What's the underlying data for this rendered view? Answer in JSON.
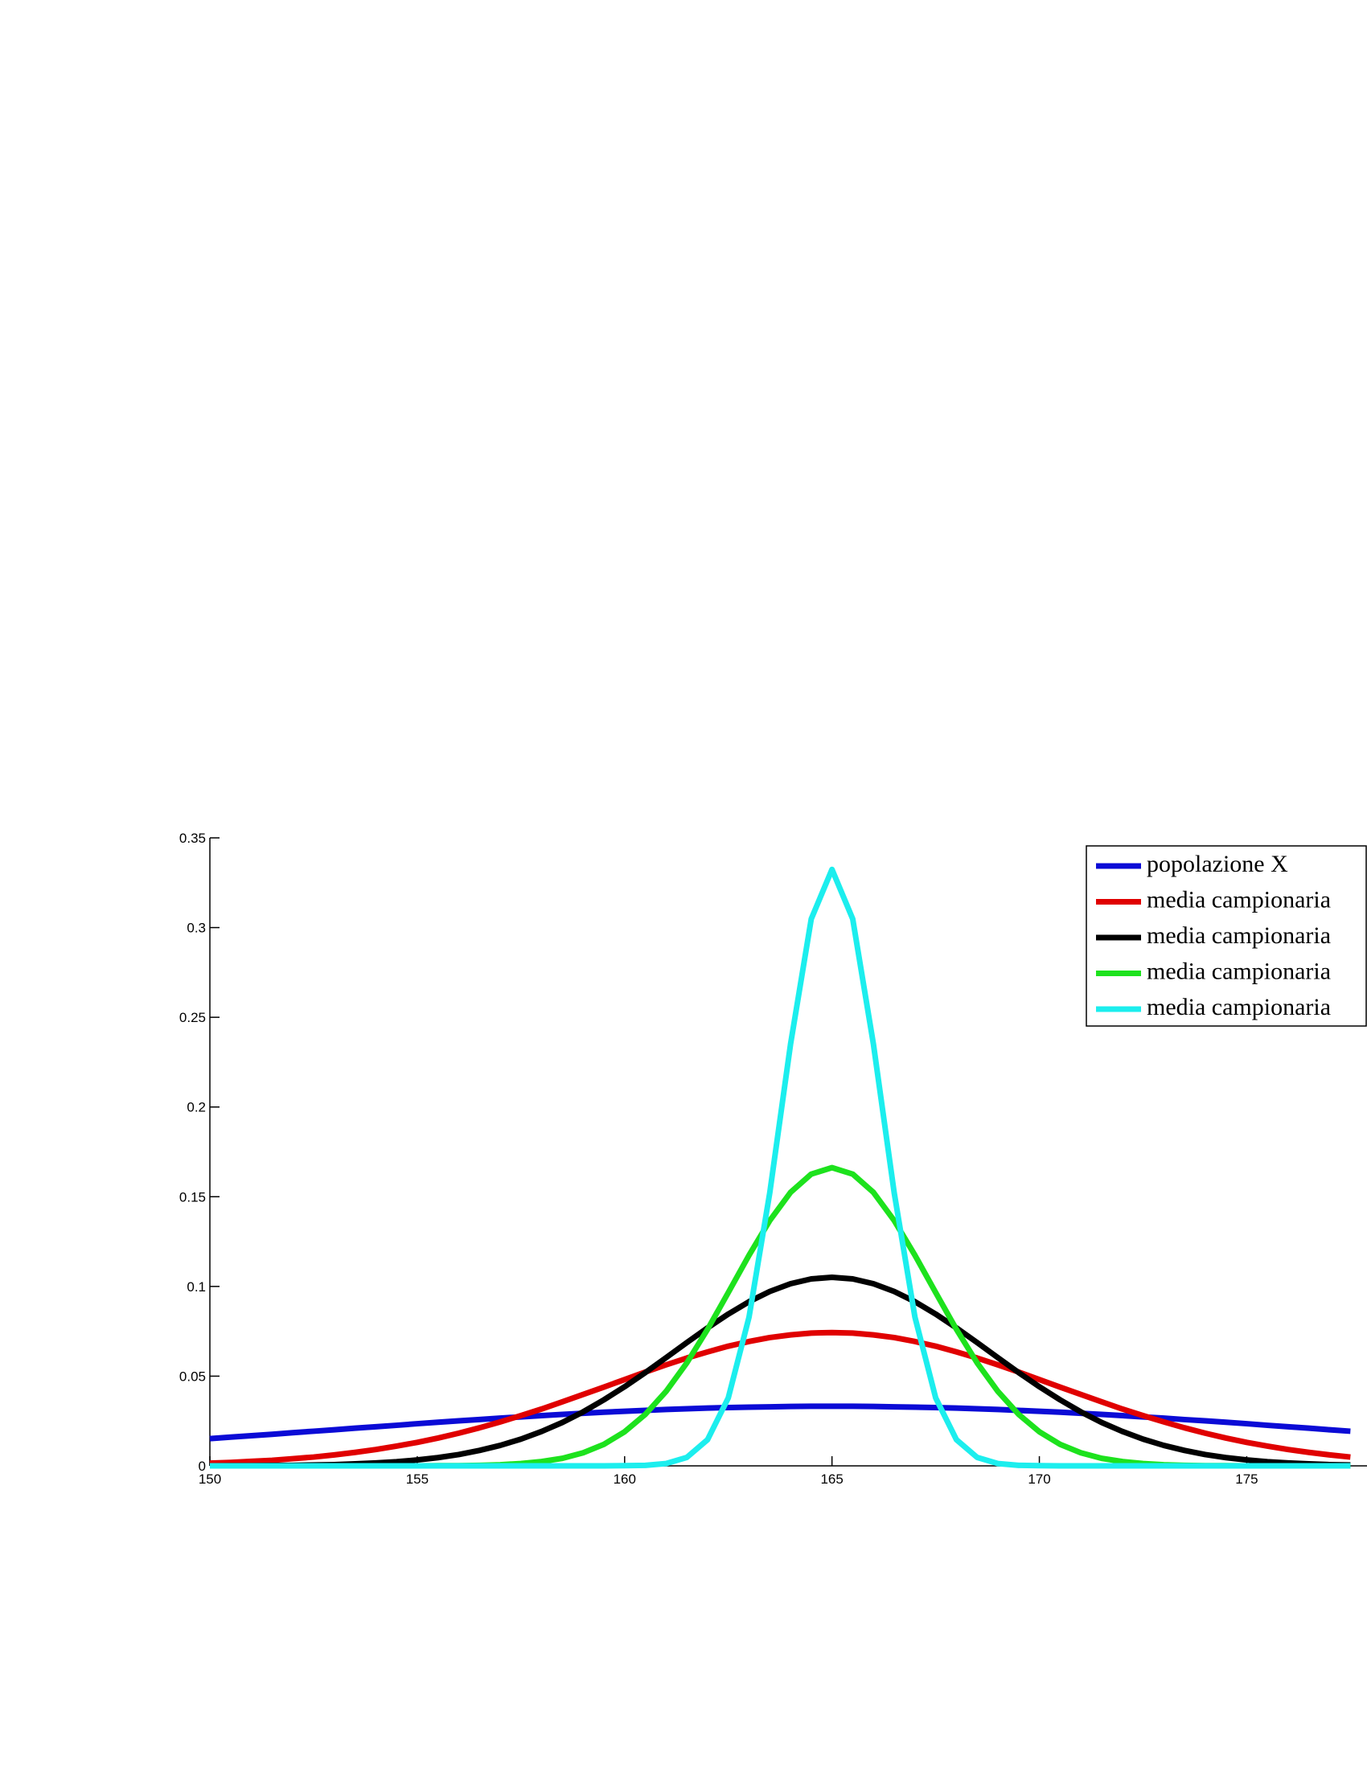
{
  "chart_data": {
    "type": "line",
    "x": [
      150,
      150.5,
      151,
      151.5,
      152,
      152.5,
      153,
      153.5,
      154,
      154.5,
      155,
      155.5,
      156,
      156.5,
      157,
      157.5,
      158,
      158.5,
      159,
      159.5,
      160,
      160.5,
      161,
      161.5,
      162,
      162.5,
      163,
      163.5,
      164,
      164.5,
      165,
      165.5,
      166,
      166.5,
      167,
      167.5,
      168,
      168.5,
      169,
      169.5,
      170,
      170.5,
      171,
      171.5,
      172,
      172.5,
      173,
      173.5,
      174,
      174.5,
      175,
      175.5,
      176,
      176.5,
      177,
      177.5
    ],
    "series": [
      {
        "name": "popolazione X",
        "color": "#0b0bd6",
        "values": [
          0.0152,
          0.016,
          0.0168,
          0.0176,
          0.0185,
          0.0193,
          0.0201,
          0.021,
          0.0218,
          0.0226,
          0.0235,
          0.0243,
          0.0251,
          0.0258,
          0.0266,
          0.0273,
          0.028,
          0.0287,
          0.0293,
          0.0299,
          0.0304,
          0.0309,
          0.0314,
          0.0318,
          0.0322,
          0.0325,
          0.0327,
          0.0329,
          0.0331,
          0.0332,
          0.0332,
          0.0332,
          0.0331,
          0.0329,
          0.0327,
          0.0325,
          0.0322,
          0.0318,
          0.0314,
          0.0309,
          0.0304,
          0.0299,
          0.0293,
          0.0287,
          0.028,
          0.0273,
          0.0266,
          0.0258,
          0.0251,
          0.0243,
          0.0235,
          0.0226,
          0.0218,
          0.021,
          0.0201,
          0.0193
        ]
      },
      {
        "name": "media campionaria",
        "color": "#e00000",
        "values": [
          0.0015,
          0.0019,
          0.0025,
          0.0031,
          0.004,
          0.0049,
          0.0061,
          0.0075,
          0.0091,
          0.011,
          0.0131,
          0.0155,
          0.0182,
          0.0212,
          0.0245,
          0.028,
          0.0317,
          0.0357,
          0.0398,
          0.0439,
          0.0481,
          0.0523,
          0.0563,
          0.0601,
          0.0635,
          0.0667,
          0.0693,
          0.0715,
          0.073,
          0.074,
          0.0743,
          0.074,
          0.073,
          0.0715,
          0.0693,
          0.0667,
          0.0635,
          0.0601,
          0.0563,
          0.0523,
          0.0481,
          0.0439,
          0.0398,
          0.0357,
          0.0317,
          0.028,
          0.0245,
          0.0212,
          0.0182,
          0.0155,
          0.0131,
          0.011,
          0.0091,
          0.0075,
          0.0061,
          0.0049
        ]
      },
      {
        "name": "media campionaria",
        "color": "#000000",
        "values": [
          0,
          0.0001,
          0.0001,
          0.0002,
          0.0003,
          0.0005,
          0.0007,
          0.0011,
          0.0016,
          0.0023,
          0.0033,
          0.0046,
          0.0063,
          0.0086,
          0.0114,
          0.0149,
          0.0192,
          0.0242,
          0.0301,
          0.0368,
          0.0441,
          0.052,
          0.0603,
          0.0687,
          0.0769,
          0.0846,
          0.0915,
          0.0972,
          0.1015,
          0.1042,
          0.1051,
          0.1042,
          0.1015,
          0.0972,
          0.0915,
          0.0846,
          0.0769,
          0.0687,
          0.0603,
          0.052,
          0.0441,
          0.0368,
          0.0301,
          0.0242,
          0.0192,
          0.0149,
          0.0114,
          0.0086,
          0.0063,
          0.0046,
          0.0033,
          0.0023,
          0.0016,
          0.0011,
          0.0007,
          0.0005
        ]
      },
      {
        "name": "media campionaria",
        "color": "#1de21d",
        "values": [
          0,
          0,
          0,
          0,
          0,
          0,
          0,
          0,
          0,
          0,
          0,
          0.0001,
          0.0001,
          0.0003,
          0.0006,
          0.0013,
          0.0024,
          0.0042,
          0.0073,
          0.012,
          0.019,
          0.0287,
          0.0415,
          0.0574,
          0.0761,
          0.0966,
          0.1174,
          0.1367,
          0.1524,
          0.1626,
          0.1662,
          0.1626,
          0.1524,
          0.1367,
          0.1174,
          0.0966,
          0.0761,
          0.0574,
          0.0415,
          0.0287,
          0.019,
          0.012,
          0.0073,
          0.0042,
          0.0024,
          0.0013,
          0.0006,
          0.0003,
          0.0001,
          0.0001,
          0,
          0,
          0,
          0,
          0,
          0
        ]
      },
      {
        "name": "media campionaria",
        "color": "#1ceeee",
        "values": [
          0,
          0,
          0,
          0,
          0,
          0,
          0,
          0,
          0,
          0,
          0,
          0,
          0,
          0,
          0,
          0,
          0,
          0,
          0,
          0,
          0.0001,
          0.0003,
          0.0013,
          0.0047,
          0.0146,
          0.0379,
          0.0829,
          0.1522,
          0.2349,
          0.3048,
          0.3324,
          0.3048,
          0.2349,
          0.1522,
          0.0829,
          0.0379,
          0.0146,
          0.0047,
          0.0013,
          0.0003,
          0.0001,
          0,
          0,
          0,
          0,
          0,
          0,
          0,
          0,
          0,
          0,
          0,
          0,
          0,
          0,
          0
        ]
      }
    ],
    "xlim": [
      150,
      177.9
    ],
    "xticks": [
      150,
      155,
      160,
      165,
      170,
      175
    ],
    "ylim": [
      0,
      0.35
    ],
    "yticks": [
      0,
      0.05,
      0.1,
      0.15,
      0.2,
      0.25,
      0.3,
      0.35
    ],
    "legend": "upper right"
  }
}
